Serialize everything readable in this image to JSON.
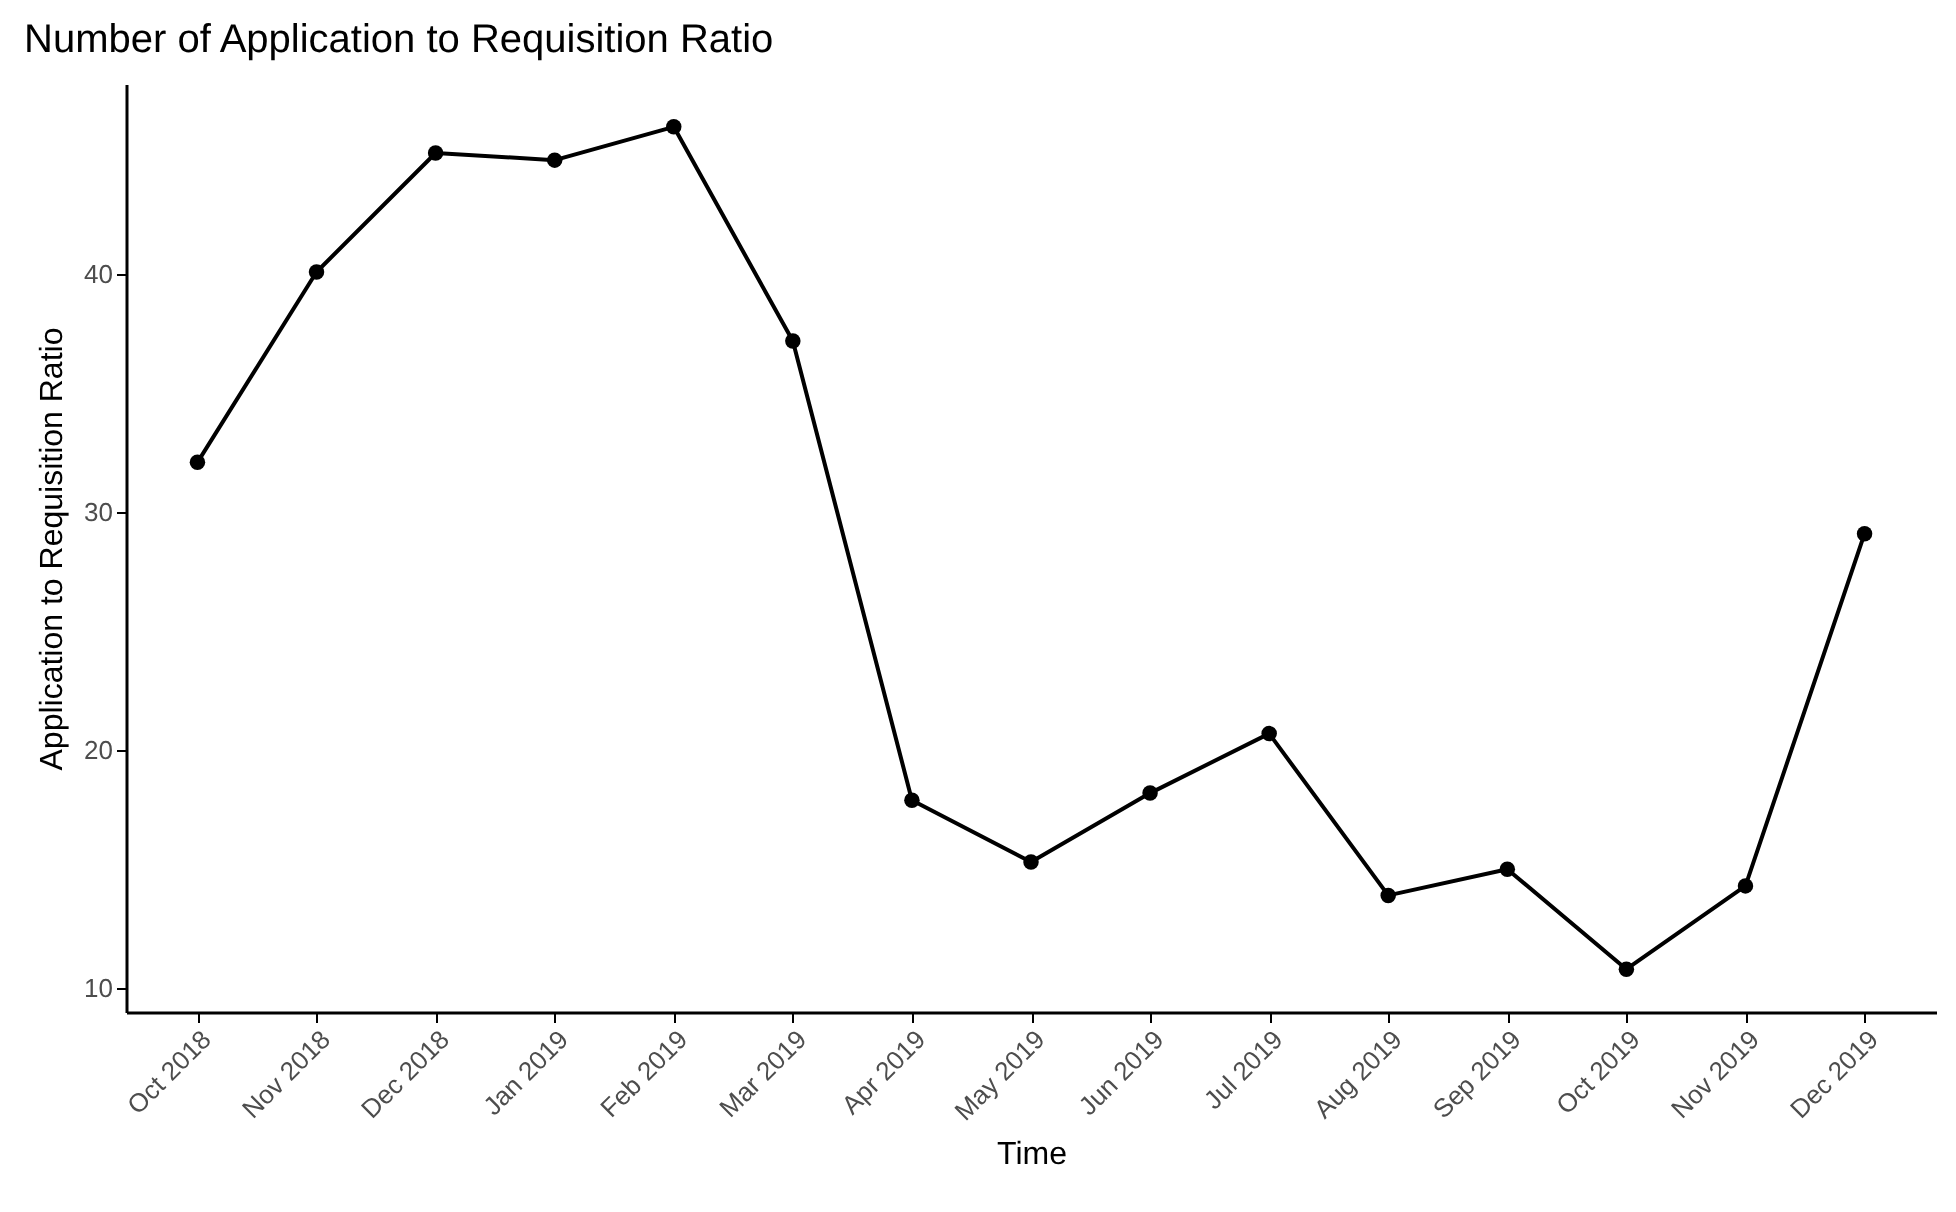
{
  "chart_data": {
    "type": "line",
    "title": "Number of Application to Requisition Ratio",
    "xlabel": "Time",
    "ylabel": "Application to Requisition Ratio",
    "categories": [
      "Oct 2018",
      "Nov 2018",
      "Dec 2018",
      "Jan 2019",
      "Feb 2019",
      "Mar 2019",
      "Apr 2019",
      "May 2019",
      "Jun 2019",
      "Jul 2019",
      "Aug 2019",
      "Sep 2019",
      "Oct 2019",
      "Nov 2019",
      "Dec 2019"
    ],
    "series": [
      {
        "color": "#000000",
        "values": [
          32.1,
          40.1,
          45.1,
          44.8,
          46.2,
          37.2,
          17.9,
          15.3,
          18.2,
          20.7,
          13.9,
          15.0,
          10.8,
          14.3,
          29.1
        ]
      }
    ],
    "ylim": [
      9,
      48
    ],
    "yticks": [
      10,
      20,
      30,
      40
    ],
    "grid": false,
    "legend": false,
    "marker": "circle",
    "line_style": "solid"
  }
}
